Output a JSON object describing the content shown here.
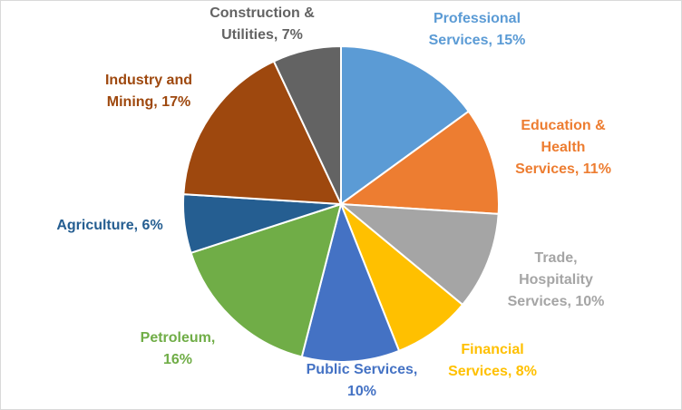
{
  "chart_data": {
    "type": "pie",
    "title": "",
    "start_angle_deg": 0,
    "direction": "clockwise",
    "slices": [
      {
        "label_lines": [
          "Professional",
          "Services, 15%"
        ],
        "value": 15,
        "color": "#5B9BD5"
      },
      {
        "label_lines": [
          "Education &",
          "Health",
          "Services, 11%"
        ],
        "value": 11,
        "color": "#ED7D31"
      },
      {
        "label_lines": [
          "Trade,",
          "Hospitality",
          "Services, 10%"
        ],
        "value": 10,
        "color": "#A5A5A5"
      },
      {
        "label_lines": [
          "Financial",
          "Services, 8%"
        ],
        "value": 8,
        "color": "#FFC000"
      },
      {
        "label_lines": [
          "Public Services,",
          "10%"
        ],
        "value": 10,
        "color": "#4472C4"
      },
      {
        "label_lines": [
          "Petroleum,",
          "16%"
        ],
        "value": 16,
        "color": "#70AD47"
      },
      {
        "label_lines": [
          "Agriculture, 6%"
        ],
        "value": 6,
        "color": "#255E91"
      },
      {
        "label_lines": [
          "Industry and",
          "Mining, 17%"
        ],
        "value": 17,
        "color": "#9E480E"
      },
      {
        "label_lines": [
          "Construction &",
          "Utilities, 7%"
        ],
        "value": 7,
        "color": "#636363"
      }
    ]
  }
}
